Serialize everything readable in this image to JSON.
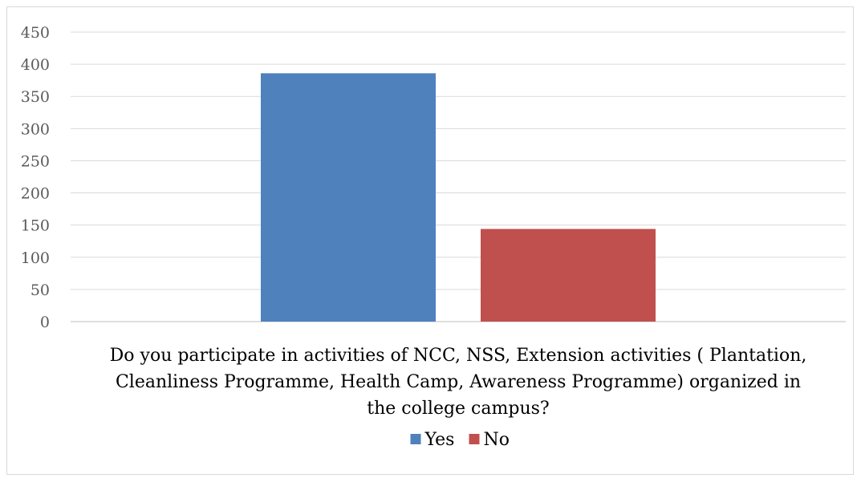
{
  "chart_data": {
    "type": "bar",
    "categories": [
      "Do you participate in activities of NCC, NSS, Extension activities ( Plantation, Cleanliness Programme, Health Camp, Awareness Programme) organized in the college campus?"
    ],
    "category_label_lines": [
      "Do you participate in activities of NCC, NSS, Extension activities ( Plantation,",
      "Cleanliness Programme, Health Camp, Awareness Programme) organized in",
      "the college campus?"
    ],
    "series": [
      {
        "name": "Yes",
        "values": [
          386
        ],
        "color": "#4f81bd"
      },
      {
        "name": "No",
        "values": [
          144
        ],
        "color": "#c0504d"
      }
    ],
    "ylim": [
      0,
      450
    ],
    "yticks": [
      "0",
      "50",
      "100",
      "150",
      "200",
      "250",
      "300",
      "350",
      "400",
      "450"
    ],
    "grid": true,
    "legend": "bottom",
    "title": "",
    "xlabel": "",
    "ylabel": ""
  }
}
